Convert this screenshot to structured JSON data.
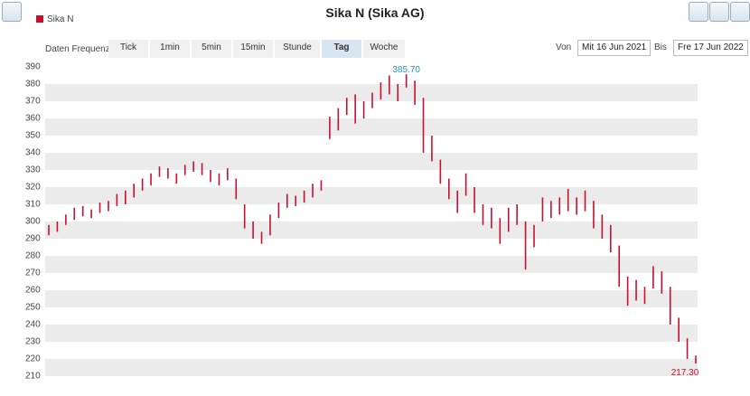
{
  "chart_data": {
    "type": "ohlc",
    "title": "Sika N (Sika AG)",
    "toolbar": {
      "label": "Daten Frequenz",
      "buttons": [
        "Tick",
        "1min",
        "5min",
        "15min",
        "Stunde",
        "Tag",
        "Woche"
      ],
      "active": "Tag",
      "from_label": "Von",
      "from": "Mit 16 Jun 2021",
      "to_label": "Bis",
      "to": "Fre 17 Jun 2022"
    },
    "series": [
      {
        "name": "Sika N",
        "color": "#c8102e",
        "high": [
          298,
          300,
          304,
          308,
          309,
          307,
          311,
          312,
          316,
          318,
          322,
          325,
          328,
          332,
          331,
          328,
          333,
          335,
          334,
          330,
          328,
          331,
          325,
          310,
          300,
          294,
          304,
          311,
          316,
          315,
          318,
          322,
          324,
          361,
          366,
          372,
          374,
          370,
          375,
          381,
          385,
          380,
          385.7,
          382,
          372,
          350,
          336,
          325,
          318,
          328,
          320,
          310,
          308,
          302,
          308,
          310,
          300,
          298,
          314,
          312,
          314,
          319,
          314,
          318,
          312,
          304,
          298,
          286,
          268,
          266,
          262,
          274,
          271,
          262,
          244,
          232,
          222
        ],
        "low": [
          292,
          294,
          298,
          301,
          303,
          302,
          305,
          306,
          309,
          310,
          314,
          318,
          321,
          326,
          325,
          322,
          327,
          329,
          327,
          323,
          321,
          324,
          313,
          296,
          290,
          287,
          292,
          302,
          308,
          309,
          311,
          314,
          318,
          348,
          353,
          362,
          357,
          360,
          366,
          371,
          374,
          370,
          378,
          368,
          340,
          335,
          322,
          313,
          305,
          315,
          305,
          298,
          296,
          287,
          294,
          298,
          272,
          285,
          300,
          302,
          304,
          306,
          304,
          306,
          296,
          290,
          282,
          262,
          251,
          254,
          252,
          261,
          258,
          240,
          230,
          220,
          217.3
        ]
      }
    ],
    "annotations": [
      {
        "text": "385.70",
        "value": 385.7,
        "color": "#2a8fc8"
      },
      {
        "text": "217.30",
        "value": 217.3,
        "color": "#c8102e"
      }
    ],
    "ylim": [
      210,
      390
    ],
    "yticks": [
      210,
      220,
      230,
      240,
      250,
      260,
      270,
      280,
      290,
      300,
      310,
      320,
      330,
      340,
      350,
      360,
      370,
      380,
      390
    ],
    "grid": true
  }
}
